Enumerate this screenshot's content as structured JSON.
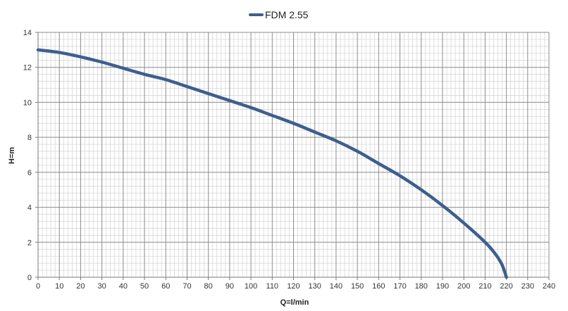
{
  "chart_data": {
    "type": "line",
    "title": "",
    "xlabel": "Q=l/min",
    "ylabel": "H=m",
    "xlim": [
      0,
      240
    ],
    "ylim": [
      0,
      14
    ],
    "x_ticks": [
      "0",
      "10",
      "20",
      "30",
      "40",
      "50",
      "60",
      "70",
      "80",
      "90",
      "100",
      "110",
      "120",
      "130",
      "140",
      "150",
      "160",
      "170",
      "180",
      "190",
      "200",
      "210",
      "220",
      "230",
      "240"
    ],
    "y_ticks": [
      "0",
      "2",
      "4",
      "6",
      "8",
      "10",
      "12",
      "14"
    ],
    "grid": true,
    "minor_grid": true,
    "legend_position": "top-center",
    "series": [
      {
        "name": "FDM 2.55",
        "color": "#3d5f8e",
        "x": [
          0,
          10,
          20,
          30,
          40,
          50,
          60,
          70,
          80,
          90,
          100,
          110,
          120,
          130,
          140,
          150,
          160,
          170,
          180,
          190,
          200,
          210,
          215,
          218,
          220
        ],
        "y": [
          13.0,
          12.85,
          12.6,
          12.3,
          11.95,
          11.6,
          11.3,
          10.9,
          10.5,
          10.1,
          9.7,
          9.25,
          8.8,
          8.3,
          7.8,
          7.2,
          6.5,
          5.8,
          5.0,
          4.1,
          3.1,
          2.0,
          1.3,
          0.7,
          0.0
        ]
      }
    ]
  }
}
